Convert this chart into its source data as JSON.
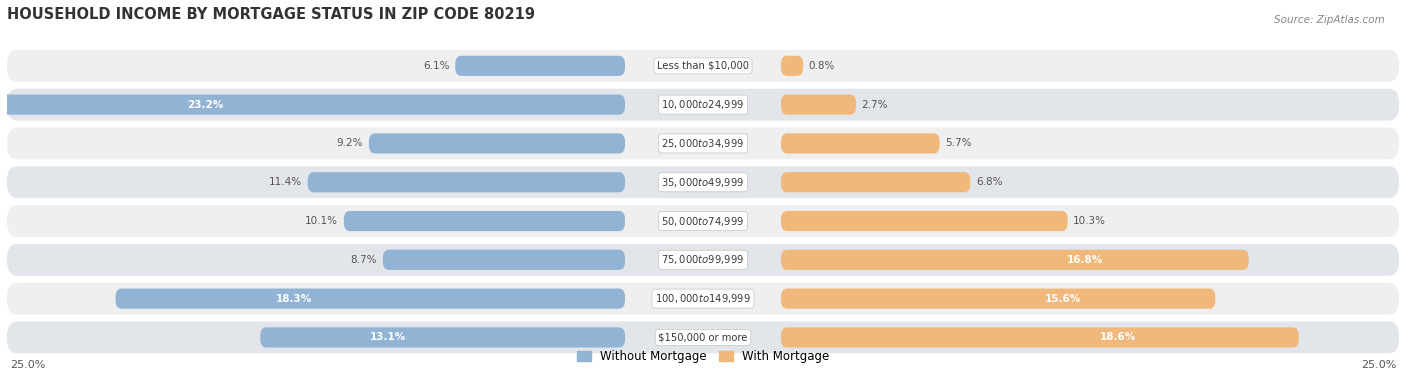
{
  "title": "HOUSEHOLD INCOME BY MORTGAGE STATUS IN ZIP CODE 80219",
  "source": "Source: ZipAtlas.com",
  "categories": [
    "Less than $10,000",
    "$10,000 to $24,999",
    "$25,000 to $34,999",
    "$35,000 to $49,999",
    "$50,000 to $74,999",
    "$75,000 to $99,999",
    "$100,000 to $149,999",
    "$150,000 or more"
  ],
  "without_mortgage": [
    6.1,
    23.2,
    9.2,
    11.4,
    10.1,
    8.7,
    18.3,
    13.1
  ],
  "with_mortgage": [
    0.8,
    2.7,
    5.7,
    6.8,
    10.3,
    16.8,
    15.6,
    18.6
  ],
  "color_without": "#92b4d4",
  "color_with": "#f0b87a",
  "row_color_light": "#efefef",
  "row_color_dark": "#e2e5ea",
  "xlim": 25.0,
  "label_threshold": 12.0,
  "legend_labels": [
    "Without Mortgage",
    "With Mortgage"
  ]
}
